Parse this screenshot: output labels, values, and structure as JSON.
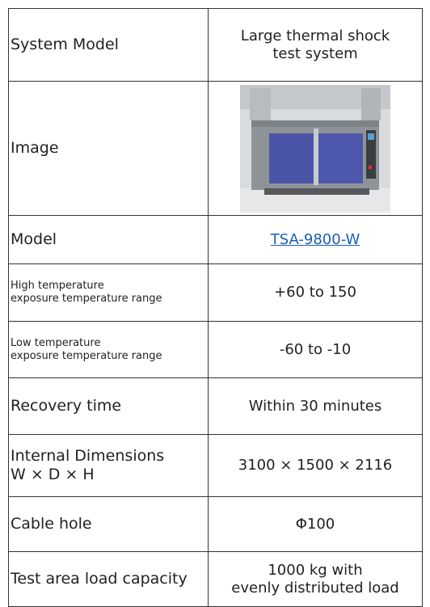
{
  "table": {
    "rows": [
      {
        "label": [
          "System Model"
        ],
        "value": [
          "Large thermal shock",
          "test system"
        ]
      },
      {
        "label": [
          "Image"
        ]
      },
      {
        "label": [
          "Model"
        ],
        "value": [
          "TSA-9800-W"
        ]
      },
      {
        "label": [
          "High temperature",
          "exposure temperature range"
        ],
        "value": [
          "+60 to 150"
        ]
      },
      {
        "label": [
          "Low temperature",
          "exposure temperature range"
        ],
        "value": [
          "-60 to -10"
        ]
      },
      {
        "label": [
          "Recovery time"
        ],
        "value": [
          "Within 30 minutes"
        ]
      },
      {
        "label": [
          "Internal Dimensions",
          "W × D × H"
        ],
        "value": [
          "3100 × 1500 × 2116"
        ]
      },
      {
        "label": [
          "Cable hole"
        ],
        "value": [
          "Φ100"
        ]
      },
      {
        "label": [
          "Test area load capacity"
        ],
        "value": [
          "1000 kg with",
          "evenly distributed load"
        ]
      }
    ]
  }
}
